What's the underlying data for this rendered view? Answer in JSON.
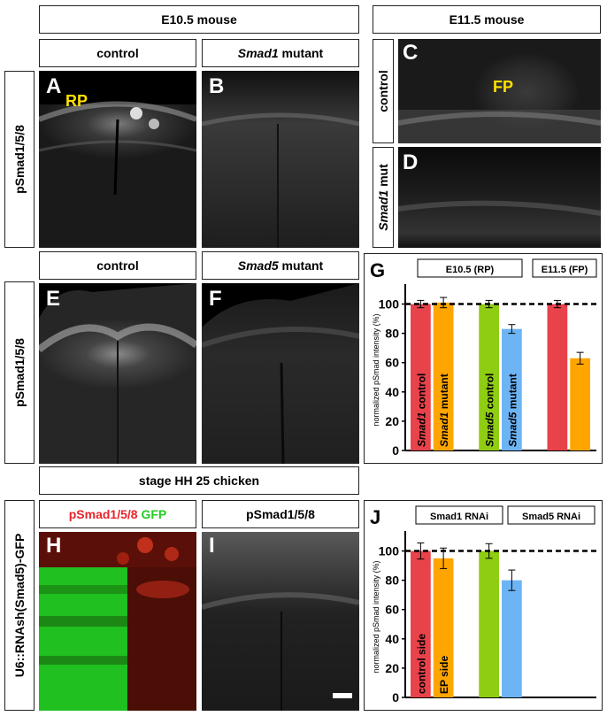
{
  "headers": {
    "e105": "E10.5 mouse",
    "e115": "E11.5 mouse",
    "control_top": "control",
    "smad1_mutant_gene": "Smad1",
    "smad1_mutant_suffix": " mutant",
    "control_mid": "control",
    "smad5_mutant_gene": "Smad5",
    "smad5_mutant_suffix": " mutant",
    "stage_chick": "stage HH 25 chicken",
    "ps_green_a": "pSmad1/5/8",
    "ps_green_b": " GFP",
    "ps_right": "pSmad1/5/8"
  },
  "side_labels": {
    "row1": "pSmad1/5/8",
    "row2": "pSmad1/5/8",
    "c_control": "control",
    "d_gene": "Smad1",
    "d_suffix": " mut",
    "row3": "U6::RNAsh(Smad5)-GFP"
  },
  "panels": {
    "A": "A",
    "B": "B",
    "C": "C",
    "D": "D",
    "E": "E",
    "F": "F",
    "G": "G",
    "H": "H",
    "I": "I",
    "J": "J"
  },
  "annotations": {
    "rp": "RP",
    "fp": "FP"
  },
  "colors": {
    "red": "#e8424a",
    "orange": "#ffa500",
    "green": "#8fcd12",
    "blue": "#6db4f5",
    "yellow": "#ffe000"
  },
  "chart_data": [
    {
      "panel": "G",
      "type": "bar",
      "ylabel": "normalized pSmad intensity (%)",
      "ylim": [
        0,
        110
      ],
      "yticks": [
        0,
        20,
        40,
        60,
        80,
        100
      ],
      "reference_line": 100,
      "groups": [
        "E10.5 (RP)",
        "E11.5 (FP)"
      ],
      "bars": [
        {
          "label_gene": "Smad1",
          "label_suffix": " control",
          "value": 100,
          "error": 2.5,
          "color": "#e8424a",
          "slot": 0
        },
        {
          "label_gene": "Smad1",
          "label_suffix": " mutant",
          "value": 101,
          "error": 3.5,
          "color": "#ffa500",
          "slot": 1
        },
        {
          "label_gene": "Smad5",
          "label_suffix": " control",
          "value": 100,
          "error": 2.5,
          "color": "#8fcd12",
          "slot": 3
        },
        {
          "label_gene": "Smad5",
          "label_suffix": " mutant",
          "value": 83,
          "error": 3,
          "color": "#6db4f5",
          "slot": 4
        },
        {
          "label_gene": "",
          "label_suffix": "",
          "value": 100,
          "error": 2.5,
          "color": "#e8424a",
          "slot": 6
        },
        {
          "label_gene": "",
          "label_suffix": "",
          "value": 63,
          "error": 4,
          "color": "#ffa500",
          "slot": 7
        }
      ]
    },
    {
      "panel": "J",
      "type": "bar",
      "ylabel": "normalized pSmad intensity (%)",
      "ylim": [
        0,
        110
      ],
      "yticks": [
        0,
        20,
        40,
        60,
        80,
        100
      ],
      "reference_line": 100,
      "groups": [
        "Smad1 RNAi",
        "Smad5 RNAi"
      ],
      "bars": [
        {
          "label_gene": "",
          "label_suffix": "control side",
          "value": 100,
          "error": 5.5,
          "color": "#e8424a",
          "slot": 0
        },
        {
          "label_gene": "",
          "label_suffix": "EP side",
          "value": 95,
          "error": 7,
          "color": "#ffa500",
          "slot": 1
        },
        {
          "label_gene": "",
          "label_suffix": "",
          "value": 100,
          "error": 5,
          "color": "#8fcd12",
          "slot": 3
        },
        {
          "label_gene": "",
          "label_suffix": "",
          "value": 80,
          "error": 7,
          "color": "#6db4f5",
          "slot": 4
        }
      ]
    }
  ]
}
